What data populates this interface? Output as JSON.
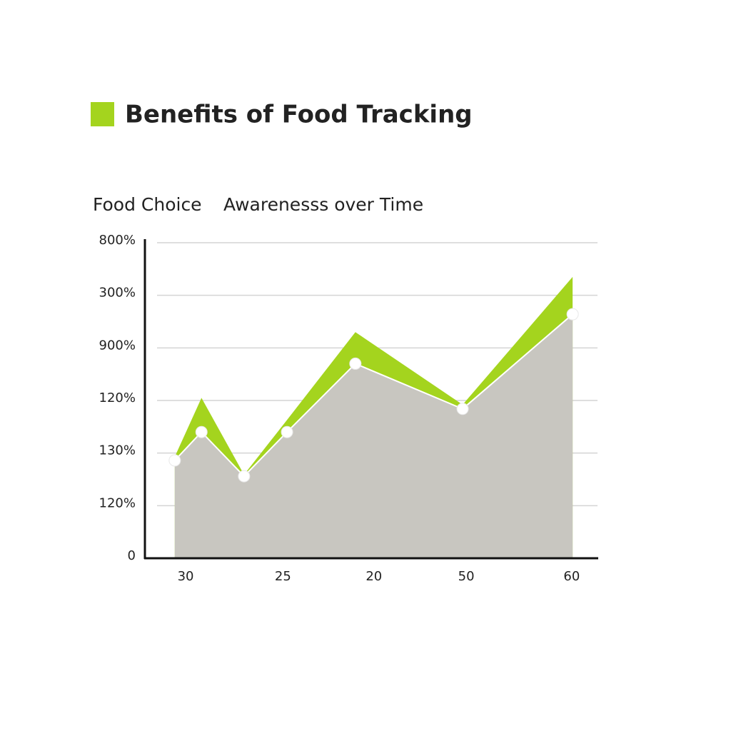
{
  "chart_data": {
    "type": "area",
    "title": "Benefits of Food Tracking",
    "subtitle": [
      "Food Choice",
      "Awarenesss over Time"
    ],
    "x": [
      0.66,
      1.25,
      2.19,
      3.14,
      4.65,
      7.02,
      9.45
    ],
    "xlim": [
      0,
      10
    ],
    "xticks": [
      {
        "value": 0.9,
        "label": "30"
      },
      {
        "value": 3.05,
        "label": "25"
      },
      {
        "value": 5.06,
        "label": "20"
      },
      {
        "value": 7.1,
        "label": "50"
      },
      {
        "value": 9.43,
        "label": "60"
      }
    ],
    "ylim": [
      0,
      6
    ],
    "yticks": [
      0,
      {
        "value": 1,
        "label": "120%"
      },
      {
        "value": 2,
        "label": "130%"
      },
      {
        "value": 3,
        "label": "120%"
      },
      {
        "value": 4,
        "label": "900%"
      },
      {
        "value": 5,
        "label": "300%"
      },
      {
        "value": 6,
        "label": "800%"
      }
    ],
    "grid": true,
    "series": [
      {
        "color": "#a4d41e",
        "values": [
          1.93,
          3.05,
          1.59,
          2.63,
          4.3,
          2.92,
          5.35
        ]
      },
      {
        "color": "#c8c6c0",
        "values": [
          1.86,
          2.4,
          1.56,
          2.4,
          3.7,
          2.84,
          4.64
        ]
      }
    ]
  }
}
